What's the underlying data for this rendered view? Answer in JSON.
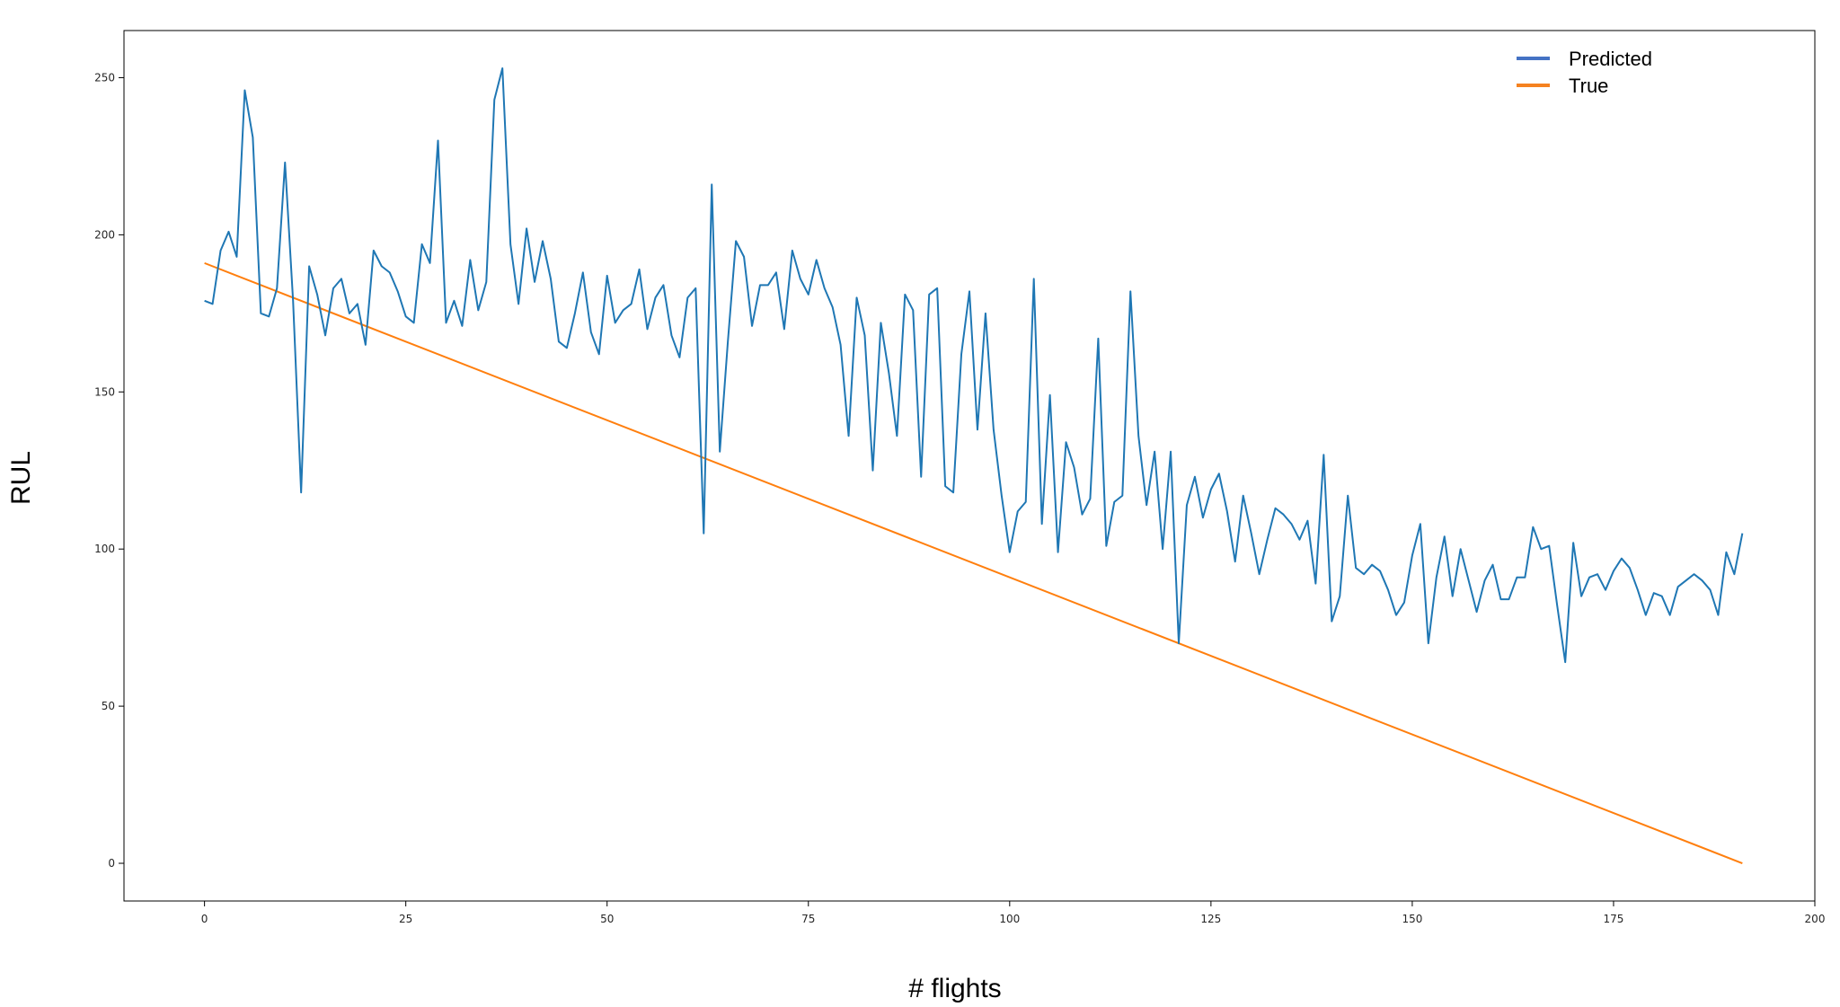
{
  "chart_data": {
    "type": "line",
    "title": "",
    "xlabel": "# flights",
    "ylabel": "RUL",
    "xlim": [
      -10,
      200
    ],
    "ylim": [
      -12,
      265
    ],
    "xticks": [
      0,
      25,
      50,
      75,
      100,
      125,
      150,
      175,
      200
    ],
    "yticks": [
      0,
      50,
      100,
      150,
      200,
      250
    ],
    "grid": false,
    "legend_position": "top-right",
    "series": [
      {
        "name": "Predicted",
        "color": "#1f77b4",
        "x_start": 0,
        "x_step": 1,
        "values": [
          179,
          178,
          195,
          201,
          193,
          246,
          231,
          175,
          174,
          183,
          223,
          179,
          118,
          190,
          181,
          168,
          183,
          186,
          175,
          178,
          165,
          195,
          190,
          188,
          182,
          174,
          172,
          197,
          191,
          230,
          172,
          179,
          171,
          192,
          176,
          185,
          243,
          253,
          197,
          178,
          202,
          185,
          198,
          186,
          166,
          164,
          175,
          188,
          169,
          162,
          187,
          172,
          176,
          178,
          189,
          170,
          180,
          184,
          168,
          161,
          180,
          183,
          105,
          216,
          131,
          166,
          198,
          193,
          171,
          184,
          184,
          188,
          170,
          195,
          186,
          181,
          192,
          183,
          177,
          165,
          136,
          180,
          168,
          125,
          172,
          156,
          136,
          181,
          176,
          123,
          181,
          183,
          120,
          118,
          162,
          182,
          138,
          175,
          138,
          117,
          99,
          112,
          115,
          186,
          108,
          149,
          99,
          134,
          126,
          111,
          116,
          167,
          101,
          115,
          117,
          182,
          136,
          114,
          131,
          100,
          131,
          70,
          114,
          123,
          110,
          119,
          124,
          112,
          96,
          117,
          105,
          92,
          103,
          113,
          111,
          108,
          103,
          109,
          89,
          130,
          77,
          85,
          117,
          94,
          92,
          95,
          93,
          87,
          79,
          83,
          98,
          108,
          70,
          91,
          104,
          85,
          100,
          90,
          80,
          90,
          95,
          84,
          84,
          91,
          91,
          107,
          100,
          101,
          82,
          64,
          102,
          85,
          91,
          92,
          87,
          93,
          97,
          94,
          87,
          79,
          86,
          85,
          79,
          88,
          90,
          92,
          90,
          87,
          79,
          99,
          92,
          105
        ]
      },
      {
        "name": "True",
        "color": "#ff7f0e",
        "x": [
          0,
          191
        ],
        "values": [
          191,
          0
        ]
      }
    ]
  }
}
